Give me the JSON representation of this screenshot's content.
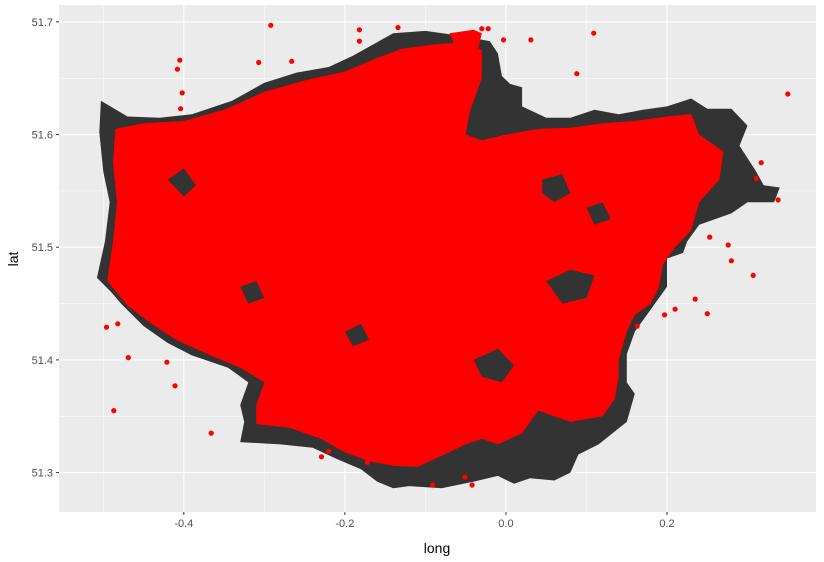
{
  "chart_data": {
    "type": "scatter",
    "title": "",
    "xlabel": "long",
    "ylabel": "lat",
    "xlim": [
      -0.555,
      0.385
    ],
    "ylim": [
      51.265,
      51.715
    ],
    "x_ticks": [
      -0.4,
      -0.2,
      0.0,
      0.2
    ],
    "x_tick_labels": [
      "-0.4",
      "-0.2",
      "0.0",
      "0.2"
    ],
    "y_ticks": [
      51.3,
      51.4,
      51.5,
      51.6,
      51.7
    ],
    "y_tick_labels": [
      "51.3",
      "51.4",
      "51.5",
      "51.6",
      "51.7"
    ],
    "grid": true,
    "legend": "none",
    "background_color": "#ebebeb",
    "grid_color": "#ffffff",
    "boundary_fill_color": "#333333",
    "point_color": "#ff0000",
    "layers": [
      {
        "kind": "polygon",
        "description_id": "boundary",
        "points": [
          [
            -0.508,
            51.473
          ],
          [
            -0.498,
            51.505
          ],
          [
            -0.492,
            51.54
          ],
          [
            -0.5,
            51.567
          ],
          [
            -0.505,
            51.602
          ],
          [
            -0.503,
            51.63
          ],
          [
            -0.47,
            51.616
          ],
          [
            -0.43,
            51.615
          ],
          [
            -0.39,
            51.618
          ],
          [
            -0.34,
            51.63
          ],
          [
            -0.3,
            51.646
          ],
          [
            -0.26,
            51.655
          ],
          [
            -0.22,
            51.66
          ],
          [
            -0.19,
            51.67
          ],
          [
            -0.16,
            51.682
          ],
          [
            -0.14,
            51.69
          ],
          [
            -0.1,
            51.692
          ],
          [
            -0.06,
            51.688
          ],
          [
            -0.02,
            51.683
          ],
          [
            -0.01,
            51.672
          ],
          [
            -0.005,
            51.652
          ],
          [
            0.005,
            51.645
          ],
          [
            0.02,
            51.642
          ],
          [
            0.02,
            51.625
          ],
          [
            0.05,
            51.615
          ],
          [
            0.08,
            51.615
          ],
          [
            0.11,
            51.622
          ],
          [
            0.14,
            51.618
          ],
          [
            0.17,
            51.622
          ],
          [
            0.2,
            51.625
          ],
          [
            0.23,
            51.632
          ],
          [
            0.25,
            51.623
          ],
          [
            0.28,
            51.623
          ],
          [
            0.3,
            51.608
          ],
          [
            0.29,
            51.59
          ],
          [
            0.31,
            51.568
          ],
          [
            0.32,
            51.555
          ],
          [
            0.34,
            51.553
          ],
          [
            0.333,
            51.54
          ],
          [
            0.3,
            51.54
          ],
          [
            0.28,
            51.53
          ],
          [
            0.24,
            51.52
          ],
          [
            0.225,
            51.505
          ],
          [
            0.22,
            51.495
          ],
          [
            0.2,
            51.49
          ],
          [
            0.2,
            51.465
          ],
          [
            0.18,
            51.445
          ],
          [
            0.16,
            51.425
          ],
          [
            0.15,
            51.405
          ],
          [
            0.15,
            51.38
          ],
          [
            0.16,
            51.37
          ],
          [
            0.15,
            51.345
          ],
          [
            0.115,
            51.325
          ],
          [
            0.09,
            51.316
          ],
          [
            0.08,
            51.3
          ],
          [
            0.06,
            51.293
          ],
          [
            0.03,
            51.295
          ],
          [
            0.01,
            51.29
          ],
          [
            -0.01,
            51.297
          ],
          [
            -0.04,
            51.292
          ],
          [
            -0.08,
            51.286
          ],
          [
            -0.12,
            51.288
          ],
          [
            -0.14,
            51.286
          ],
          [
            -0.16,
            51.292
          ],
          [
            -0.18,
            51.303
          ],
          [
            -0.21,
            51.312
          ],
          [
            -0.24,
            51.322
          ],
          [
            -0.28,
            51.325
          ],
          [
            -0.33,
            51.327
          ],
          [
            -0.325,
            51.345
          ],
          [
            -0.33,
            51.36
          ],
          [
            -0.32,
            51.38
          ],
          [
            -0.345,
            51.393
          ],
          [
            -0.39,
            51.404
          ],
          [
            -0.42,
            51.415
          ],
          [
            -0.45,
            51.43
          ],
          [
            -0.478,
            51.45
          ],
          [
            -0.49,
            51.46
          ],
          [
            -0.508,
            51.473
          ]
        ]
      },
      {
        "kind": "polygon",
        "description_id": "dense-points",
        "points": [
          [
            -0.495,
            51.47
          ],
          [
            -0.488,
            51.505
          ],
          [
            -0.483,
            51.54
          ],
          [
            -0.488,
            51.575
          ],
          [
            -0.485,
            51.605
          ],
          [
            -0.45,
            51.61
          ],
          [
            -0.4,
            51.612
          ],
          [
            -0.35,
            51.622
          ],
          [
            -0.3,
            51.638
          ],
          [
            -0.25,
            51.648
          ],
          [
            -0.2,
            51.656
          ],
          [
            -0.16,
            51.668
          ],
          [
            -0.13,
            51.676
          ],
          [
            -0.09,
            51.68
          ],
          [
            -0.05,
            51.682
          ],
          [
            -0.03,
            51.675
          ],
          [
            -0.03,
            51.65
          ],
          [
            -0.045,
            51.62
          ],
          [
            -0.05,
            51.6
          ],
          [
            -0.03,
            51.595
          ],
          [
            0.0,
            51.6
          ],
          [
            0.04,
            51.605
          ],
          [
            0.08,
            51.606
          ],
          [
            0.12,
            51.61
          ],
          [
            0.16,
            51.612
          ],
          [
            0.2,
            51.616
          ],
          [
            0.23,
            51.618
          ],
          [
            0.24,
            51.6
          ],
          [
            0.27,
            51.585
          ],
          [
            0.265,
            51.56
          ],
          [
            0.24,
            51.54
          ],
          [
            0.23,
            51.515
          ],
          [
            0.21,
            51.5
          ],
          [
            0.195,
            51.485
          ],
          [
            0.19,
            51.465
          ],
          [
            0.18,
            51.45
          ],
          [
            0.16,
            51.44
          ],
          [
            0.15,
            51.425
          ],
          [
            0.14,
            51.4
          ],
          [
            0.14,
            51.385
          ],
          [
            0.135,
            51.365
          ],
          [
            0.12,
            51.35
          ],
          [
            0.08,
            51.345
          ],
          [
            0.06,
            51.35
          ],
          [
            0.04,
            51.355
          ],
          [
            0.02,
            51.335
          ],
          [
            -0.01,
            51.325
          ],
          [
            -0.03,
            51.33
          ],
          [
            -0.05,
            51.325
          ],
          [
            -0.08,
            51.315
          ],
          [
            -0.11,
            51.305
          ],
          [
            -0.14,
            51.306
          ],
          [
            -0.17,
            51.31
          ],
          [
            -0.2,
            51.318
          ],
          [
            -0.23,
            51.33
          ],
          [
            -0.27,
            51.34
          ],
          [
            -0.31,
            51.343
          ],
          [
            -0.31,
            51.36
          ],
          [
            -0.3,
            51.38
          ],
          [
            -0.33,
            51.393
          ],
          [
            -0.37,
            51.405
          ],
          [
            -0.41,
            51.418
          ],
          [
            -0.44,
            51.432
          ],
          [
            -0.47,
            51.448
          ],
          [
            -0.495,
            51.47
          ]
        ]
      },
      {
        "kind": "polygon",
        "description_id": "dense-points",
        "points": [
          [
            -0.07,
            51.69
          ],
          [
            -0.04,
            51.693
          ],
          [
            -0.03,
            51.69
          ],
          [
            -0.035,
            51.675
          ],
          [
            -0.06,
            51.673
          ]
        ]
      },
      {
        "kind": "polygon",
        "description_id": "boundary-hole",
        "points": [
          [
            0.05,
            51.47
          ],
          [
            0.08,
            51.48
          ],
          [
            0.11,
            51.475
          ],
          [
            0.1,
            51.455
          ],
          [
            0.07,
            51.45
          ]
        ]
      },
      {
        "kind": "polygon",
        "description_id": "boundary-hole",
        "points": [
          [
            -0.04,
            51.4
          ],
          [
            -0.01,
            51.41
          ],
          [
            0.01,
            51.395
          ],
          [
            -0.005,
            51.38
          ],
          [
            -0.03,
            51.385
          ]
        ]
      },
      {
        "kind": "polygon",
        "description_id": "boundary-hole",
        "points": [
          [
            0.045,
            51.56
          ],
          [
            0.07,
            51.565
          ],
          [
            0.08,
            51.548
          ],
          [
            0.06,
            51.54
          ],
          [
            0.045,
            51.548
          ]
        ]
      },
      {
        "kind": "polygon",
        "description_id": "boundary-hole",
        "points": [
          [
            -0.42,
            51.56
          ],
          [
            -0.4,
            51.57
          ],
          [
            -0.385,
            51.555
          ],
          [
            -0.4,
            51.545
          ]
        ]
      },
      {
        "kind": "polygon",
        "description_id": "boundary-hole",
        "points": [
          [
            -0.33,
            51.465
          ],
          [
            -0.31,
            51.47
          ],
          [
            -0.3,
            51.455
          ],
          [
            -0.32,
            51.45
          ]
        ]
      },
      {
        "kind": "polygon",
        "description_id": "boundary-hole",
        "points": [
          [
            -0.2,
            51.425
          ],
          [
            -0.18,
            51.432
          ],
          [
            -0.17,
            51.418
          ],
          [
            -0.19,
            51.412
          ]
        ]
      },
      {
        "kind": "polygon",
        "description_id": "boundary-hole",
        "points": [
          [
            0.1,
            51.535
          ],
          [
            0.12,
            51.54
          ],
          [
            0.13,
            51.525
          ],
          [
            0.11,
            51.52
          ]
        ]
      }
    ],
    "points": [
      [
        -0.292,
        51.697
      ],
      [
        -0.266,
        51.665
      ],
      [
        -0.307,
        51.664
      ],
      [
        -0.182,
        51.693
      ],
      [
        -0.182,
        51.683
      ],
      [
        -0.134,
        51.695
      ],
      [
        -0.03,
        51.694
      ],
      [
        -0.022,
        51.694
      ],
      [
        -0.003,
        51.684
      ],
      [
        0.031,
        51.684
      ],
      [
        0.109,
        51.69
      ],
      [
        0.088,
        51.654
      ],
      [
        0.35,
        51.636
      ],
      [
        0.317,
        51.575
      ],
      [
        0.311,
        51.561
      ],
      [
        0.338,
        51.542
      ],
      [
        0.253,
        51.509
      ],
      [
        0.276,
        51.502
      ],
      [
        0.28,
        51.488
      ],
      [
        0.307,
        51.475
      ],
      [
        0.235,
        51.454
      ],
      [
        0.21,
        51.445
      ],
      [
        0.25,
        51.441
      ],
      [
        -0.405,
        51.666
      ],
      [
        -0.408,
        51.658
      ],
      [
        -0.402,
        51.637
      ],
      [
        -0.404,
        51.623
      ],
      [
        -0.496,
        51.429
      ],
      [
        -0.482,
        51.432
      ],
      [
        -0.469,
        51.402
      ],
      [
        -0.421,
        51.398
      ],
      [
        -0.411,
        51.377
      ],
      [
        -0.487,
        51.355
      ],
      [
        -0.366,
        51.335
      ],
      [
        -0.229,
        51.314
      ],
      [
        -0.22,
        51.319
      ],
      [
        -0.172,
        51.309
      ],
      [
        -0.091,
        51.289
      ],
      [
        -0.051,
        51.296
      ],
      [
        -0.042,
        51.289
      ],
      [
        -0.246,
        51.346
      ],
      [
        -0.262,
        51.36
      ],
      [
        0.12,
        51.413
      ],
      [
        0.138,
        51.42
      ],
      [
        0.163,
        51.43
      ],
      [
        0.197,
        51.44
      ]
    ]
  }
}
